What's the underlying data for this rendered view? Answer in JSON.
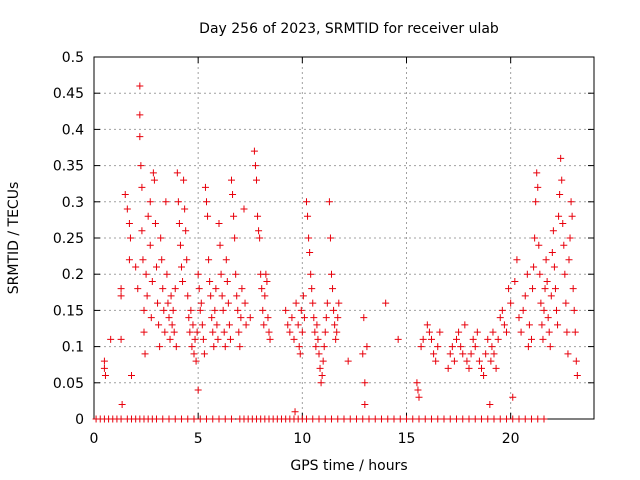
{
  "chart_data": {
    "type": "scatter",
    "title": "Day 256 of 2023, SRMTID for receiver ulab",
    "xlabel": "GPS time / hours",
    "ylabel": "SRMTID / TECUs",
    "xlim": [
      0,
      24
    ],
    "ylim": [
      0,
      0.5
    ],
    "xticks": [
      0,
      5,
      10,
      15,
      20
    ],
    "yticks": [
      0,
      0.05,
      0.1,
      0.15,
      0.2,
      0.25,
      0.3,
      0.35,
      0.4,
      0.45,
      0.5
    ],
    "xtick_labels": [
      "0",
      "5",
      "10",
      "15",
      "20"
    ],
    "ytick_labels": [
      "0",
      "0.05",
      "0.1",
      "0.15",
      "0.2",
      "0.25",
      "0.3",
      "0.35",
      "0.4",
      "0.45",
      "0.5"
    ],
    "grid": true,
    "marker": "plus",
    "color": "#e8000b",
    "series": [
      {
        "name": "SRMTID",
        "points": [
          [
            0.5,
            0.08
          ],
          [
            0.5,
            0.07
          ],
          [
            0.55,
            0.06
          ],
          [
            0.8,
            0.11
          ],
          [
            1.3,
            0.18
          ],
          [
            1.3,
            0.17
          ],
          [
            1.3,
            0.11
          ],
          [
            1.35,
            0.02
          ],
          [
            1.5,
            0.31
          ],
          [
            1.6,
            0.29
          ],
          [
            1.7,
            0.27
          ],
          [
            1.7,
            0.22
          ],
          [
            1.75,
            0.25
          ],
          [
            1.8,
            0.06
          ],
          [
            2.0,
            0.21
          ],
          [
            2.1,
            0.18
          ],
          [
            2.2,
            0.46
          ],
          [
            2.2,
            0.42
          ],
          [
            2.2,
            0.39
          ],
          [
            2.25,
            0.35
          ],
          [
            2.3,
            0.32
          ],
          [
            2.3,
            0.26
          ],
          [
            2.35,
            0.22
          ],
          [
            2.4,
            0.15
          ],
          [
            2.4,
            0.12
          ],
          [
            2.45,
            0.09
          ],
          [
            2.5,
            0.2
          ],
          [
            2.55,
            0.17
          ],
          [
            2.6,
            0.28
          ],
          [
            2.7,
            0.3
          ],
          [
            2.7,
            0.24
          ],
          [
            2.75,
            0.14
          ],
          [
            2.8,
            0.19
          ],
          [
            2.85,
            0.34
          ],
          [
            2.9,
            0.33
          ],
          [
            2.95,
            0.27
          ],
          [
            3.0,
            0.21
          ],
          [
            3.05,
            0.16
          ],
          [
            3.1,
            0.13
          ],
          [
            3.15,
            0.1
          ],
          [
            3.2,
            0.25
          ],
          [
            3.25,
            0.22
          ],
          [
            3.3,
            0.18
          ],
          [
            3.35,
            0.15
          ],
          [
            3.4,
            0.12
          ],
          [
            3.45,
            0.3
          ],
          [
            3.5,
            0.2
          ],
          [
            3.55,
            0.16
          ],
          [
            3.6,
            0.14
          ],
          [
            3.65,
            0.11
          ],
          [
            3.7,
            0.17
          ],
          [
            3.75,
            0.13
          ],
          [
            3.8,
            0.15
          ],
          [
            3.85,
            0.12
          ],
          [
            3.9,
            0.18
          ],
          [
            3.95,
            0.1
          ],
          [
            4.0,
            0.34
          ],
          [
            4.05,
            0.3
          ],
          [
            4.1,
            0.27
          ],
          [
            4.15,
            0.24
          ],
          [
            4.2,
            0.21
          ],
          [
            4.25,
            0.19
          ],
          [
            4.3,
            0.33
          ],
          [
            4.35,
            0.29
          ],
          [
            4.4,
            0.26
          ],
          [
            4.45,
            0.22
          ],
          [
            4.5,
            0.17
          ],
          [
            4.55,
            0.14
          ],
          [
            4.6,
            0.12
          ],
          [
            4.65,
            0.15
          ],
          [
            4.7,
            0.1
          ],
          [
            4.75,
            0.13
          ],
          [
            4.8,
            0.09
          ],
          [
            4.85,
            0.11
          ],
          [
            4.9,
            0.08
          ],
          [
            4.95,
            0.12
          ],
          [
            5.0,
            0.04
          ],
          [
            5.0,
            0.2
          ],
          [
            5.05,
            0.18
          ],
          [
            5.1,
            0.15
          ],
          [
            5.15,
            0.16
          ],
          [
            5.2,
            0.13
          ],
          [
            5.25,
            0.11
          ],
          [
            5.3,
            0.09
          ],
          [
            5.35,
            0.32
          ],
          [
            5.4,
            0.3
          ],
          [
            5.45,
            0.28
          ],
          [
            5.5,
            0.22
          ],
          [
            5.55,
            0.19
          ],
          [
            5.6,
            0.17
          ],
          [
            5.65,
            0.14
          ],
          [
            5.7,
            0.12
          ],
          [
            5.75,
            0.1
          ],
          [
            5.8,
            0.15
          ],
          [
            5.85,
            0.18
          ],
          [
            5.9,
            0.13
          ],
          [
            5.95,
            0.11
          ],
          [
            6.0,
            0.27
          ],
          [
            6.05,
            0.24
          ],
          [
            6.1,
            0.2
          ],
          [
            6.15,
            0.17
          ],
          [
            6.2,
            0.15
          ],
          [
            6.25,
            0.12
          ],
          [
            6.3,
            0.1
          ],
          [
            6.35,
            0.22
          ],
          [
            6.4,
            0.19
          ],
          [
            6.45,
            0.16
          ],
          [
            6.5,
            0.13
          ],
          [
            6.55,
            0.11
          ],
          [
            6.6,
            0.33
          ],
          [
            6.65,
            0.31
          ],
          [
            6.7,
            0.28
          ],
          [
            6.75,
            0.25
          ],
          [
            6.8,
            0.2
          ],
          [
            6.85,
            0.17
          ],
          [
            6.9,
            0.15
          ],
          [
            6.95,
            0.12
          ],
          [
            7.0,
            0.1
          ],
          [
            7.05,
            0.14
          ],
          [
            7.1,
            0.18
          ],
          [
            7.2,
            0.29
          ],
          [
            7.25,
            0.16
          ],
          [
            7.3,
            0.13
          ],
          [
            7.5,
            0.14
          ],
          [
            7.7,
            0.37
          ],
          [
            7.75,
            0.35
          ],
          [
            7.8,
            0.33
          ],
          [
            7.85,
            0.28
          ],
          [
            7.9,
            0.26
          ],
          [
            7.95,
            0.25
          ],
          [
            8.0,
            0.2
          ],
          [
            8.05,
            0.18
          ],
          [
            8.1,
            0.15
          ],
          [
            8.15,
            0.13
          ],
          [
            8.2,
            0.17
          ],
          [
            8.25,
            0.2
          ],
          [
            8.3,
            0.19
          ],
          [
            8.35,
            0.14
          ],
          [
            8.4,
            0.12
          ],
          [
            8.45,
            0.11
          ],
          [
            9.2,
            0.15
          ],
          [
            9.3,
            0.13
          ],
          [
            9.4,
            0.12
          ],
          [
            9.5,
            0.14
          ],
          [
            9.6,
            0.11
          ],
          [
            9.65,
            0.01
          ],
          [
            9.7,
            0.16
          ],
          [
            9.8,
            0.13
          ],
          [
            9.85,
            0.1
          ],
          [
            9.9,
            0.09
          ],
          [
            9.95,
            0.15
          ],
          [
            10.0,
            0.12
          ],
          [
            10.05,
            0.17
          ],
          [
            10.1,
            0.14
          ],
          [
            10.2,
            0.3
          ],
          [
            10.25,
            0.28
          ],
          [
            10.3,
            0.25
          ],
          [
            10.35,
            0.23
          ],
          [
            10.4,
            0.2
          ],
          [
            10.45,
            0.18
          ],
          [
            10.5,
            0.16
          ],
          [
            10.55,
            0.14
          ],
          [
            10.6,
            0.12
          ],
          [
            10.65,
            0.1
          ],
          [
            10.7,
            0.13
          ],
          [
            10.75,
            0.11
          ],
          [
            10.8,
            0.09
          ],
          [
            10.85,
            0.07
          ],
          [
            10.9,
            0.05
          ],
          [
            10.95,
            0.06
          ],
          [
            11.0,
            0.08
          ],
          [
            11.05,
            0.1
          ],
          [
            11.1,
            0.12
          ],
          [
            11.15,
            0.14
          ],
          [
            11.2,
            0.16
          ],
          [
            11.3,
            0.3
          ],
          [
            11.35,
            0.25
          ],
          [
            11.4,
            0.2
          ],
          [
            11.45,
            0.18
          ],
          [
            11.5,
            0.15
          ],
          [
            11.55,
            0.13
          ],
          [
            11.6,
            0.11
          ],
          [
            11.65,
            0.12
          ],
          [
            11.7,
            0.14
          ],
          [
            11.75,
            0.16
          ],
          [
            12.2,
            0.08
          ],
          [
            12.9,
            0.09
          ],
          [
            12.95,
            0.14
          ],
          [
            13.0,
            0.05
          ],
          [
            13.0,
            0.02
          ],
          [
            13.1,
            0.1
          ],
          [
            14.0,
            0.16
          ],
          [
            14.6,
            0.11
          ],
          [
            15.5,
            0.05
          ],
          [
            15.55,
            0.04
          ],
          [
            15.6,
            0.03
          ],
          [
            15.7,
            0.1
          ],
          [
            15.8,
            0.11
          ],
          [
            16.0,
            0.13
          ],
          [
            16.1,
            0.12
          ],
          [
            16.2,
            0.11
          ],
          [
            16.3,
            0.09
          ],
          [
            16.4,
            0.08
          ],
          [
            16.5,
            0.1
          ],
          [
            16.6,
            0.12
          ],
          [
            17.0,
            0.07
          ],
          [
            17.1,
            0.09
          ],
          [
            17.2,
            0.1
          ],
          [
            17.3,
            0.08
          ],
          [
            17.4,
            0.11
          ],
          [
            17.5,
            0.12
          ],
          [
            17.6,
            0.1
          ],
          [
            17.7,
            0.09
          ],
          [
            17.8,
            0.13
          ],
          [
            17.9,
            0.08
          ],
          [
            18.0,
            0.07
          ],
          [
            18.1,
            0.09
          ],
          [
            18.2,
            0.11
          ],
          [
            18.3,
            0.1
          ],
          [
            18.4,
            0.12
          ],
          [
            18.5,
            0.08
          ],
          [
            18.6,
            0.07
          ],
          [
            18.7,
            0.06
          ],
          [
            18.8,
            0.09
          ],
          [
            18.9,
            0.11
          ],
          [
            19.0,
            0.02
          ],
          [
            19.05,
            0.08
          ],
          [
            19.1,
            0.1
          ],
          [
            19.15,
            0.12
          ],
          [
            19.2,
            0.09
          ],
          [
            19.3,
            0.07
          ],
          [
            19.4,
            0.11
          ],
          [
            19.5,
            0.14
          ],
          [
            19.6,
            0.15
          ],
          [
            19.7,
            0.13
          ],
          [
            19.8,
            0.12
          ],
          [
            19.9,
            0.18
          ],
          [
            20.0,
            0.16
          ],
          [
            20.1,
            0.03
          ],
          [
            20.2,
            0.19
          ],
          [
            20.3,
            0.22
          ],
          [
            20.4,
            0.14
          ],
          [
            20.5,
            0.12
          ],
          [
            20.6,
            0.15
          ],
          [
            20.7,
            0.17
          ],
          [
            20.8,
            0.2
          ],
          [
            20.85,
            0.1
          ],
          [
            20.9,
            0.13
          ],
          [
            21.0,
            0.11
          ],
          [
            21.05,
            0.18
          ],
          [
            21.1,
            0.21
          ],
          [
            21.15,
            0.25
          ],
          [
            21.2,
            0.3
          ],
          [
            21.25,
            0.34
          ],
          [
            21.3,
            0.32
          ],
          [
            21.35,
            0.24
          ],
          [
            21.4,
            0.2
          ],
          [
            21.45,
            0.16
          ],
          [
            21.5,
            0.13
          ],
          [
            21.55,
            0.11
          ],
          [
            21.6,
            0.15
          ],
          [
            21.65,
            0.18
          ],
          [
            21.7,
            0.22
          ],
          [
            21.75,
            0.19
          ],
          [
            21.8,
            0.14
          ],
          [
            21.85,
            0.12
          ],
          [
            21.9,
            0.1
          ],
          [
            21.95,
            0.17
          ],
          [
            22.0,
            0.23
          ],
          [
            22.05,
            0.26
          ],
          [
            22.1,
            0.21
          ],
          [
            22.15,
            0.18
          ],
          [
            22.2,
            0.15
          ],
          [
            22.25,
            0.13
          ],
          [
            22.3,
            0.28
          ],
          [
            22.35,
            0.31
          ],
          [
            22.4,
            0.36
          ],
          [
            22.45,
            0.33
          ],
          [
            22.5,
            0.27
          ],
          [
            22.55,
            0.24
          ],
          [
            22.6,
            0.2
          ],
          [
            22.65,
            0.16
          ],
          [
            22.7,
            0.12
          ],
          [
            22.75,
            0.09
          ],
          [
            22.8,
            0.22
          ],
          [
            22.85,
            0.25
          ],
          [
            22.9,
            0.3
          ],
          [
            22.95,
            0.28
          ],
          [
            23.0,
            0.18
          ],
          [
            23.05,
            0.15
          ],
          [
            23.1,
            0.12
          ],
          [
            23.15,
            0.08
          ],
          [
            23.2,
            0.06
          ]
        ]
      }
    ],
    "zero_points_x": [
      0.1,
      0.3,
      0.5,
      0.7,
      0.9,
      1.1,
      1.3,
      1.6,
      1.8,
      2.0,
      2.2,
      2.4,
      2.6,
      2.8,
      3.0,
      3.3,
      3.6,
      3.9,
      4.2,
      4.5,
      4.8,
      5.1,
      5.4,
      5.7,
      6.0,
      6.3,
      6.6,
      7.0,
      7.2,
      7.4,
      7.6,
      7.8,
      8.0,
      8.2,
      8.4,
      8.6,
      8.8,
      9.0,
      9.2,
      9.4,
      9.6,
      9.8,
      10.0,
      10.2,
      10.5,
      10.8,
      11.1,
      11.4,
      11.7,
      12.0,
      12.3,
      12.6,
      12.9,
      13.2,
      13.5,
      13.8,
      14.1,
      14.4,
      14.7,
      15.0,
      15.3,
      15.6,
      15.9,
      16.2,
      16.5,
      16.8,
      17.1,
      17.4,
      17.7,
      18.0,
      18.3,
      18.6,
      18.9,
      19.2,
      19.5,
      19.8,
      20.1,
      20.4,
      20.7,
      21.0,
      21.3,
      21.6
    ]
  }
}
